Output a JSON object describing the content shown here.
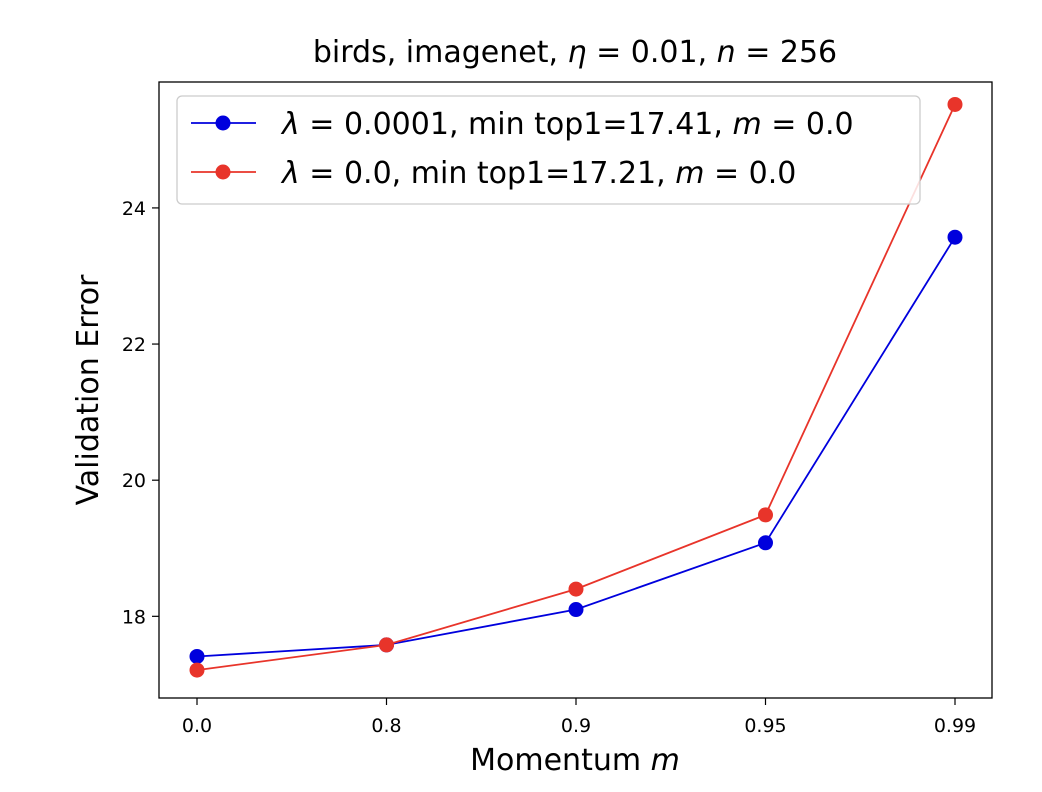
{
  "chart_data": {
    "type": "line",
    "title": "birds, imagenet, η = 0.01, n = 256",
    "title_parts": {
      "prefix": "birds, imagenet, ",
      "eta_symbol": "η",
      "eta_value": " = 0.01, ",
      "n_symbol": "n",
      "n_value": " = 256"
    },
    "xlabel": "Momentum m",
    "xlabel_parts": {
      "text": "Momentum ",
      "symbol": "m"
    },
    "ylabel": "Validation Error",
    "categories": [
      "0.0",
      "0.8",
      "0.9",
      "0.95",
      "0.99"
    ],
    "y_ticks": [
      "18",
      "20",
      "22",
      "24"
    ],
    "ylim": [
      16.8,
      25.85
    ],
    "grid": false,
    "legend_position": "top-left",
    "series": [
      {
        "name": "λ = 0.0001, min top1=17.41, m = 0.0",
        "legend_parts": {
          "lambda": "λ",
          "lambda_value": " = 0.0001, min top1=17.41, ",
          "m": "m",
          "m_value": " = 0.0"
        },
        "color": "#0000dd",
        "values": [
          17.41,
          17.58,
          18.1,
          19.08,
          23.57
        ]
      },
      {
        "name": "λ = 0.0, min top1=17.21, m = 0.0",
        "legend_parts": {
          "lambda": "λ",
          "lambda_value": " = 0.0, min top1=17.21, ",
          "m": "m",
          "m_value": " = 0.0"
        },
        "color": "#e8342a",
        "values": [
          17.21,
          17.58,
          18.4,
          19.49,
          25.52
        ]
      }
    ]
  }
}
